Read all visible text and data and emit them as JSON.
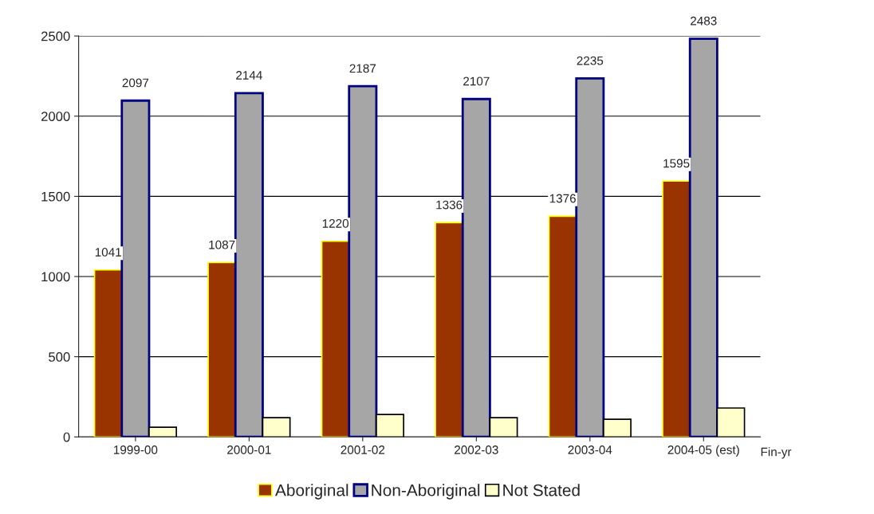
{
  "chart_data": {
    "type": "bar",
    "xlabel": "Fin-yr",
    "categories": [
      "1999-00",
      "2000-01",
      "2001-02",
      "2002-03",
      "2003-04",
      "2004-05 (est)"
    ],
    "series": [
      {
        "name": "Aboriginal",
        "color": "#993300",
        "values": [
          1041,
          1087,
          1220,
          1336,
          1376,
          1595
        ],
        "value_labels": [
          "1041",
          "1087",
          "1220",
          "1336",
          "1376",
          "1595"
        ]
      },
      {
        "name": "Non-Aboriginal",
        "color": "#a6a6a6",
        "values": [
          2097,
          2144,
          2187,
          2107,
          2235,
          2483
        ],
        "value_labels": [
          "2097",
          "2144",
          "2187",
          "2107",
          "2235",
          "2483"
        ]
      },
      {
        "name": "Not Stated",
        "color": "#ffffcc",
        "values": [
          60,
          120,
          140,
          120,
          110,
          180
        ]
      }
    ],
    "ylim": [
      0,
      2500
    ],
    "yticks": [
      0,
      500,
      1000,
      1500,
      2000,
      2500
    ],
    "grid": "y",
    "legend": "bottom"
  }
}
